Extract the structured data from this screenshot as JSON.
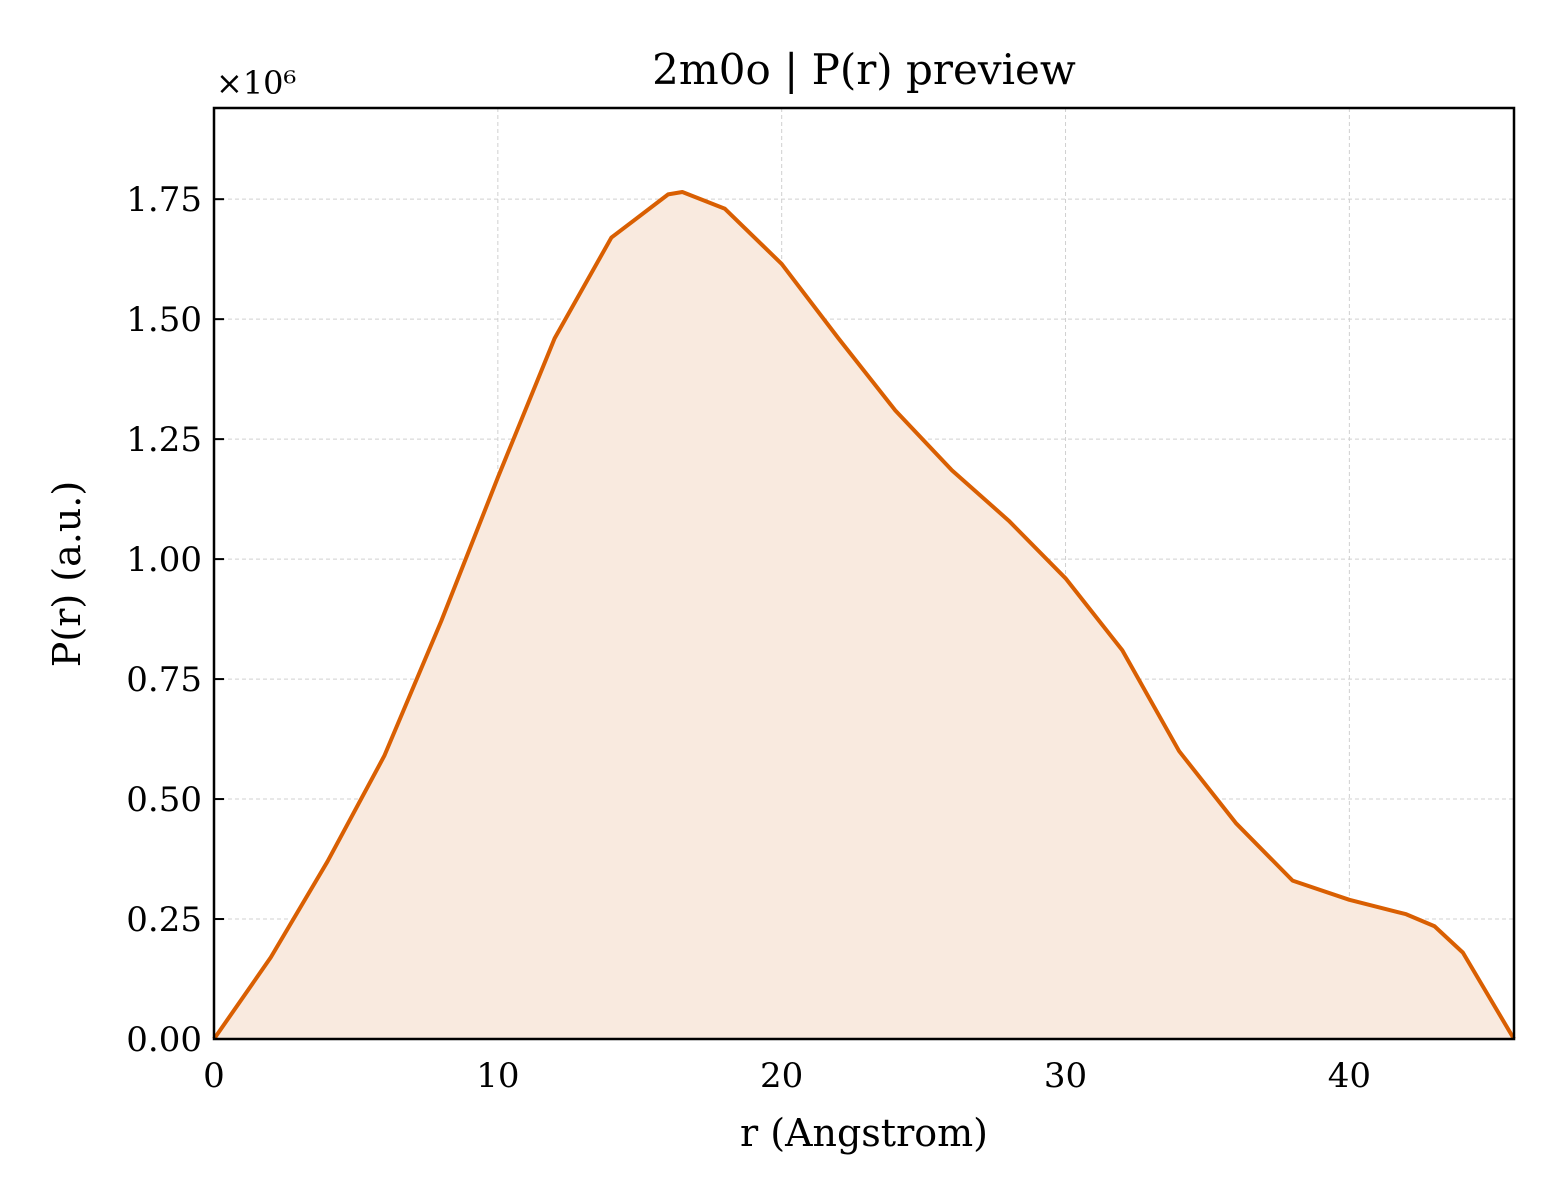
{
  "chart_data": {
    "type": "line",
    "title": "2m0o | P(r) preview",
    "x_label": "r (Angstrom)",
    "y_label": "P(r) (a.u.)",
    "y_offset_label": "×10⁶",
    "x": [
      0,
      2,
      4,
      6,
      8,
      10,
      12,
      14,
      16,
      16.5,
      18,
      20,
      22,
      24,
      26,
      28,
      30,
      32,
      34,
      36,
      38,
      40,
      42,
      43,
      44,
      45,
      45.8
    ],
    "y": [
      0,
      170000,
      370000,
      590000,
      870000,
      1170000,
      1460000,
      1670000,
      1760000,
      1765000,
      1730000,
      1615000,
      1460000,
      1310000,
      1185000,
      1080000,
      960000,
      810000,
      600000,
      450000,
      330000,
      290000,
      260000,
      235000,
      180000,
      80000,
      0
    ],
    "color": "#d95f02",
    "fill_color": "#f9eadf",
    "xlim": [
      0,
      45.8
    ],
    "xticks": [
      0,
      10,
      20,
      30,
      40
    ],
    "ylim": [
      0,
      1940000
    ],
    "yticks": [
      {
        "value": 0,
        "label": "0.00"
      },
      {
        "value": 250000,
        "label": "0.25"
      },
      {
        "value": 500000,
        "label": "0.50"
      },
      {
        "value": 750000,
        "label": "0.75"
      },
      {
        "value": 1000000,
        "label": "1.00"
      },
      {
        "value": 1250000,
        "label": "1.25"
      },
      {
        "value": 1500000,
        "label": "1.50"
      },
      {
        "value": 1750000,
        "label": "1.75"
      }
    ],
    "grid": true
  }
}
